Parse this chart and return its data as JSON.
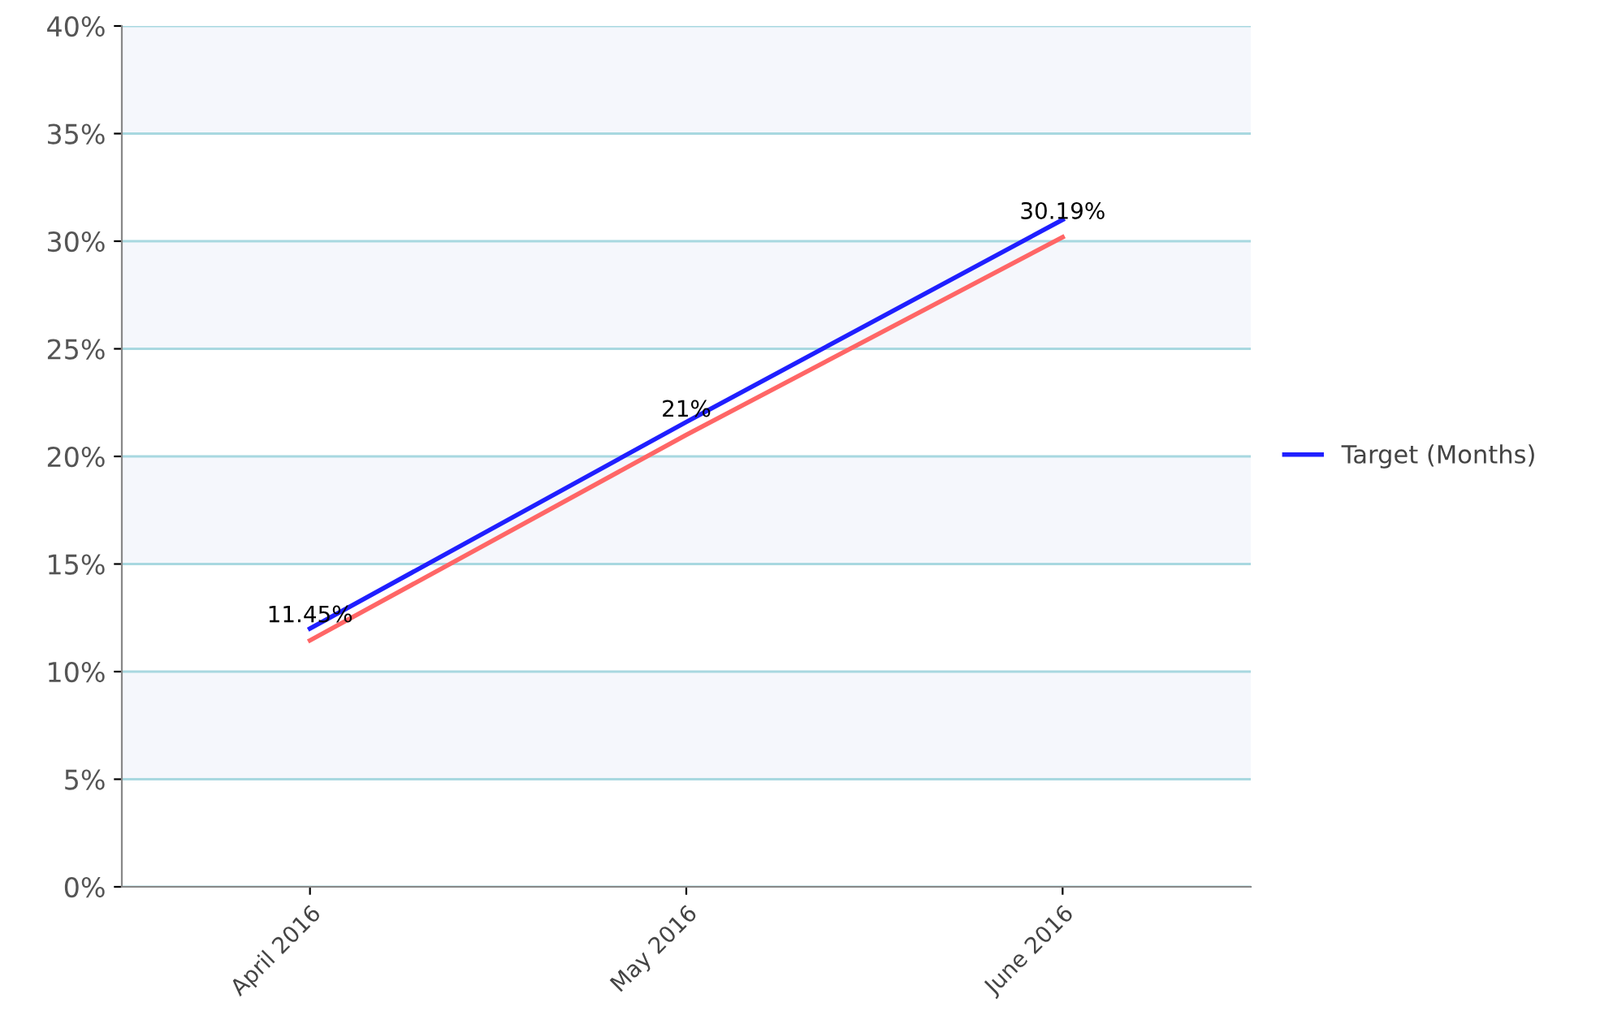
{
  "chart_data": {
    "type": "line",
    "categories": [
      "April 2016",
      "May 2016",
      "June 2016"
    ],
    "series": [
      {
        "name": "Target (Months)",
        "color": "#1f1fff",
        "values": [
          12.0,
          21.6,
          31.0
        ]
      },
      {
        "color": "#ff6666",
        "values": [
          11.45,
          21,
          30.19
        ],
        "value_labels": [
          "11.45%",
          "21%",
          "30.19%"
        ]
      }
    ],
    "ylim": [
      0,
      40
    ],
    "yticks": [
      {
        "value": 0,
        "label": "0%"
      },
      {
        "value": 5,
        "label": "5%"
      },
      {
        "value": 10,
        "label": "10%"
      },
      {
        "value": 15,
        "label": "15%"
      },
      {
        "value": 20,
        "label": "20%"
      },
      {
        "value": 25,
        "label": "25%"
      },
      {
        "value": 30,
        "label": "30%"
      },
      {
        "value": 35,
        "label": "35%"
      },
      {
        "value": 40,
        "label": "40%"
      }
    ],
    "grid": "y",
    "legend": "right",
    "marker": "none",
    "line_style": "solid"
  }
}
